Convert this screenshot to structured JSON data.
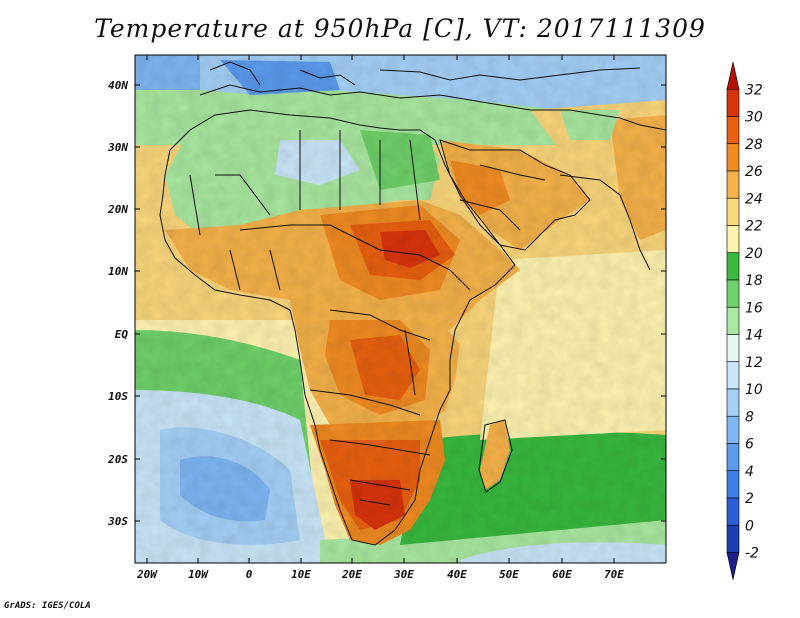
{
  "title": "Temperature at 950hPa [C], VT: 2017111309",
  "credit": "GrADS: IGES/COLA",
  "axes": {
    "lon_labels": [
      "20W",
      "10W",
      "0",
      "10E",
      "20E",
      "30E",
      "40E",
      "50E",
      "60E",
      "70E"
    ],
    "lat_labels": [
      "40N",
      "30N",
      "20N",
      "10N",
      "EQ",
      "10S",
      "20S",
      "30S"
    ]
  },
  "colorbar": {
    "labels": [
      "-2",
      "0",
      "2",
      "4",
      "6",
      "8",
      "10",
      "12",
      "14",
      "16",
      "18",
      "20",
      "22",
      "24",
      "26",
      "28",
      "30",
      "32"
    ],
    "colors": [
      "#1e1b8c",
      "#1c3fb2",
      "#2a5ed8",
      "#3c7fe6",
      "#5c9bee",
      "#7fb6f4",
      "#a4d0f7",
      "#c9e6f9",
      "#e6f6f1",
      "#a9e8a0",
      "#6fd16a",
      "#39b93f",
      "#fff3b0",
      "#fbd77c",
      "#f6b24a",
      "#f08b22",
      "#e8600f",
      "#d8340c",
      "#b41408"
    ]
  },
  "chart_data": {
    "type": "heatmap",
    "title": "Temperature at 950hPa [C], VT: 2017111309",
    "variable": "Temperature",
    "level": "950hPa",
    "units": "C",
    "valid_time": "2017111309",
    "lon_range": [
      -25,
      78
    ],
    "lat_range": [
      -36,
      45
    ],
    "color_scale": [
      -2,
      0,
      2,
      4,
      6,
      8,
      10,
      12,
      14,
      16,
      18,
      20,
      22,
      24,
      26,
      28,
      30,
      32
    ]
  }
}
